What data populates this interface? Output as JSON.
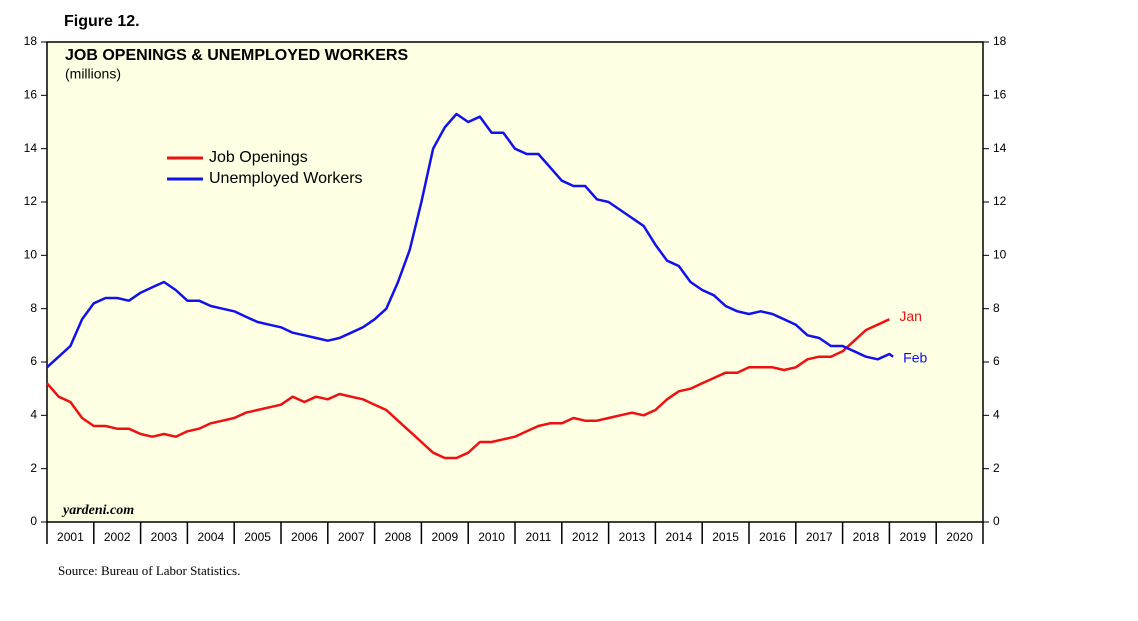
{
  "chart_data": {
    "type": "line",
    "figure_label": "Figure 12.",
    "title": "JOB OPENINGS & UNEMPLOYED WORKERS",
    "subtitle": "(millions)",
    "watermark": "yardeni.com",
    "source": "Source: Bureau of Labor Statistics.",
    "x": [
      2001,
      2001.25,
      2001.5,
      2001.75,
      2002,
      2002.25,
      2002.5,
      2002.75,
      2003,
      2003.25,
      2003.5,
      2003.75,
      2004,
      2004.25,
      2004.5,
      2004.75,
      2005,
      2005.25,
      2005.5,
      2005.75,
      2006,
      2006.25,
      2006.5,
      2006.75,
      2007,
      2007.25,
      2007.5,
      2007.75,
      2008,
      2008.25,
      2008.5,
      2008.75,
      2009,
      2009.25,
      2009.5,
      2009.75,
      2010,
      2010.25,
      2010.5,
      2010.75,
      2011,
      2011.25,
      2011.5,
      2011.75,
      2012,
      2012.25,
      2012.5,
      2012.75,
      2013,
      2013.25,
      2013.5,
      2013.75,
      2014,
      2014.25,
      2014.5,
      2014.75,
      2015,
      2015.25,
      2015.5,
      2015.75,
      2016,
      2016.25,
      2016.5,
      2016.75,
      2017,
      2017.25,
      2017.5,
      2017.75,
      2018,
      2018.25,
      2018.5,
      2018.75,
      2019,
      2019.08
    ],
    "series": [
      {
        "name": "Job Openings",
        "color": "#ee1111",
        "end_label": "Jan",
        "values": [
          5.2,
          4.7,
          4.5,
          3.9,
          3.6,
          3.6,
          3.5,
          3.5,
          3.3,
          3.2,
          3.3,
          3.2,
          3.4,
          3.5,
          3.7,
          3.8,
          3.9,
          4.1,
          4.2,
          4.3,
          4.4,
          4.7,
          4.5,
          4.7,
          4.6,
          4.8,
          4.7,
          4.6,
          4.4,
          4.2,
          3.8,
          3.4,
          3.0,
          2.6,
          2.4,
          2.4,
          2.6,
          3.0,
          3.0,
          3.1,
          3.2,
          3.4,
          3.6,
          3.7,
          3.7,
          3.9,
          3.8,
          3.8,
          3.9,
          4.0,
          4.1,
          4.0,
          4.2,
          4.6,
          4.9,
          5.0,
          5.2,
          5.4,
          5.6,
          5.6,
          5.8,
          5.8,
          5.8,
          5.7,
          5.8,
          6.1,
          6.2,
          6.2,
          6.4,
          6.8,
          7.2,
          7.4,
          7.6,
          null
        ]
      },
      {
        "name": "Unemployed Workers",
        "color": "#1111ee",
        "end_label": "Feb",
        "values": [
          5.8,
          6.2,
          6.6,
          7.6,
          8.2,
          8.4,
          8.4,
          8.3,
          8.6,
          8.8,
          9.0,
          8.7,
          8.3,
          8.3,
          8.1,
          8.0,
          7.9,
          7.7,
          7.5,
          7.4,
          7.3,
          7.1,
          7.0,
          6.9,
          6.8,
          6.9,
          7.1,
          7.3,
          7.6,
          8.0,
          9.0,
          10.2,
          12.0,
          14.0,
          14.8,
          15.3,
          15.0,
          15.2,
          14.6,
          14.6,
          14.0,
          13.8,
          13.8,
          13.3,
          12.8,
          12.6,
          12.6,
          12.1,
          12.0,
          11.7,
          11.4,
          11.1,
          10.4,
          9.8,
          9.6,
          9.0,
          8.7,
          8.5,
          8.1,
          7.9,
          7.8,
          7.9,
          7.8,
          7.6,
          7.4,
          7.0,
          6.9,
          6.6,
          6.6,
          6.4,
          6.2,
          6.1,
          6.3,
          6.2
        ]
      }
    ],
    "xlim": [
      2001,
      2021
    ],
    "xticks": [
      {
        "value": 2001.5,
        "label": "2001"
      },
      {
        "value": 2002.5,
        "label": "2002"
      },
      {
        "value": 2003.5,
        "label": "2003"
      },
      {
        "value": 2004.5,
        "label": "2004"
      },
      {
        "value": 2005.5,
        "label": "2005"
      },
      {
        "value": 2006.5,
        "label": "2006"
      },
      {
        "value": 2007.5,
        "label": "2007"
      },
      {
        "value": 2008.5,
        "label": "2008"
      },
      {
        "value": 2009.5,
        "label": "2009"
      },
      {
        "value": 2010.5,
        "label": "2010"
      },
      {
        "value": 2011.5,
        "label": "2011"
      },
      {
        "value": 2012.5,
        "label": "2012"
      },
      {
        "value": 2013.5,
        "label": "2013"
      },
      {
        "value": 2014.5,
        "label": "2014"
      },
      {
        "value": 2015.5,
        "label": "2015"
      },
      {
        "value": 2016.5,
        "label": "2016"
      },
      {
        "value": 2017.5,
        "label": "2017"
      },
      {
        "value": 2018.5,
        "label": "2018"
      },
      {
        "value": 2019.5,
        "label": "2019"
      },
      {
        "value": 2020.5,
        "label": "2020"
      }
    ],
    "ylim": [
      0,
      18
    ],
    "yticks": [
      0,
      2,
      4,
      6,
      8,
      10,
      12,
      14,
      16,
      18
    ]
  }
}
